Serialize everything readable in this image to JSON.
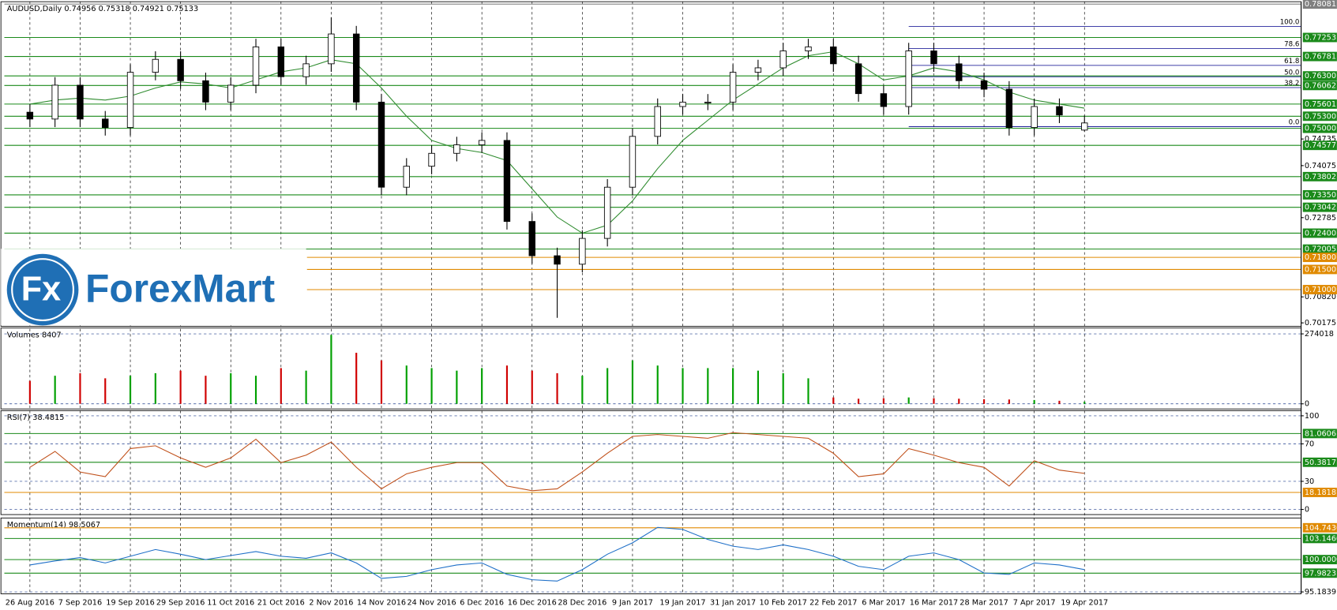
{
  "chart_data": [
    {
      "type": "candlestick",
      "title": "AUDUSD,Daily  0.74956 0.75318 0.74921 0.75133",
      "categories": [
        "26 Aug 2016",
        null,
        "7 Sep 2016",
        null,
        "19 Sep 2016",
        null,
        "29 Sep 2016",
        null,
        "11 Oct 2016",
        null,
        "21 Oct 2016",
        null,
        "2 Nov 2016",
        null,
        "14 Nov 2016",
        null,
        "24 Nov 2016",
        null,
        "6 Dec 2016",
        null,
        "16 Dec 2016",
        null,
        "28 Dec 2016",
        null,
        "9 Jan 2017",
        null,
        "19 Jan 2017",
        null,
        "31 Jan 2017",
        null,
        "10 Feb 2017",
        null,
        "22 Feb 2017",
        null,
        "6 Mar 2017",
        null,
        "16 Mar 2017",
        null,
        "28 Mar 2017",
        null,
        "7 Apr 2017",
        null,
        "19 Apr 2017"
      ],
      "open": [
        0.754,
        0.7523,
        0.7607,
        0.7523,
        0.7502,
        0.7639,
        0.7671,
        0.7618,
        0.7565,
        0.7607,
        0.7702,
        0.7628,
        0.766,
        0.7734,
        0.7565,
        0.7354,
        0.7406,
        0.7438,
        0.7459,
        0.747,
        0.7269,
        0.7184,
        0.7163,
        0.7227,
        0.7354,
        0.748,
        0.7554,
        0.7565,
        0.7565,
        0.7639,
        0.765,
        0.7692,
        0.7702,
        0.766,
        0.7586,
        0.7554,
        0.7692,
        0.766,
        0.7618,
        0.7597,
        0.7502,
        0.7554,
        0.74956
      ],
      "high": [
        0.756,
        0.7627,
        0.7627,
        0.7543,
        0.7659,
        0.7691,
        0.7691,
        0.7638,
        0.7627,
        0.7722,
        0.7722,
        0.768,
        0.7775,
        0.7754,
        0.7585,
        0.7426,
        0.7458,
        0.7479,
        0.749,
        0.749,
        0.7289,
        0.7204,
        0.7247,
        0.7374,
        0.75,
        0.7574,
        0.7585,
        0.7585,
        0.7659,
        0.767,
        0.7712,
        0.7722,
        0.7722,
        0.768,
        0.7606,
        0.7712,
        0.7712,
        0.768,
        0.7638,
        0.7617,
        0.7574,
        0.7574,
        0.75318
      ],
      "low": [
        0.7503,
        0.7503,
        0.7503,
        0.7482,
        0.7482,
        0.7619,
        0.7598,
        0.7545,
        0.7545,
        0.7587,
        0.7608,
        0.7608,
        0.764,
        0.7545,
        0.7334,
        0.7334,
        0.7386,
        0.7418,
        0.7439,
        0.7249,
        0.7164,
        0.703,
        0.7143,
        0.7207,
        0.7334,
        0.746,
        0.7534,
        0.7545,
        0.7545,
        0.7619,
        0.763,
        0.7672,
        0.764,
        0.7566,
        0.7534,
        0.7534,
        0.764,
        0.7598,
        0.7577,
        0.7482,
        0.7482,
        0.7513,
        0.74921
      ],
      "close": [
        0.7523,
        0.7607,
        0.7523,
        0.7502,
        0.7639,
        0.7671,
        0.7618,
        0.7565,
        0.7607,
        0.7702,
        0.7628,
        0.766,
        0.7734,
        0.7565,
        0.7354,
        0.7406,
        0.7438,
        0.7459,
        0.747,
        0.7269,
        0.7184,
        0.7163,
        0.7227,
        0.7354,
        0.748,
        0.7554,
        0.7565,
        0.7565,
        0.7639,
        0.765,
        0.7692,
        0.7702,
        0.766,
        0.7586,
        0.7554,
        0.7692,
        0.766,
        0.7618,
        0.7597,
        0.7502,
        0.7554,
        0.7533,
        0.75133
      ],
      "ma": {
        "color": "#2e8b2e",
        "values": [
          0.756,
          0.757,
          0.7575,
          0.757,
          0.758,
          0.76,
          0.7615,
          0.761,
          0.76,
          0.762,
          0.764,
          0.765,
          0.767,
          0.766,
          0.76,
          0.753,
          0.747,
          0.745,
          0.744,
          0.742,
          0.735,
          0.728,
          0.724,
          0.726,
          0.732,
          0.74,
          0.747,
          0.752,
          0.757,
          0.761,
          0.765,
          0.768,
          0.769,
          0.766,
          0.762,
          0.763,
          0.765,
          0.764,
          0.762,
          0.759,
          0.757,
          0.756,
          0.755
        ]
      },
      "up_color": "#ffffff",
      "down_color": "#000000",
      "ylim": [
        0.7009,
        0.7814
      ],
      "yticks": [
        0.74735,
        0.74075,
        0.72785,
        {
          "value": 0.7082,
          "label": "0.70820"
        },
        0.70175
      ],
      "levels": [
        {
          "value": 0.78081,
          "color": "#808080"
        },
        {
          "value": 0.77253,
          "color": "#1a8a1a"
        },
        {
          "value": 0.76781,
          "color": "#1a8a1a"
        },
        {
          "value": 0.763,
          "label": "0.76300",
          "color": "#1a8a1a"
        },
        {
          "value": 0.76062,
          "color": "#1a8a1a"
        },
        {
          "value": 0.75601,
          "color": "#1a8a1a"
        },
        {
          "value": 0.753,
          "label": "0.75300",
          "color": "#1a8a1a"
        },
        {
          "value": 0.75,
          "label": "0.75000",
          "color": "#1a8a1a"
        },
        {
          "value": 0.74577,
          "color": "#1a8a1a"
        },
        {
          "value": 0.73802,
          "color": "#1a8a1a"
        },
        {
          "value": 0.7335,
          "label": "0.73350",
          "color": "#1a8a1a"
        },
        {
          "value": 0.73042,
          "color": "#1a8a1a"
        },
        {
          "value": 0.724,
          "label": "0.72400",
          "color": "#1a8a1a"
        },
        {
          "value": 0.72005,
          "color": "#1a8a1a"
        },
        {
          "value": 0.718,
          "label": "0.71800",
          "color": "#e08a00"
        },
        {
          "value": 0.715,
          "label": "0.71500",
          "color": "#e08a00"
        },
        {
          "value": 0.71,
          "label": "0.71000",
          "color": "#e08a00"
        }
      ],
      "fib": [
        {
          "label": "100.0",
          "value": 0.7753
        },
        {
          "label": "78.6",
          "value": 0.7698
        },
        {
          "label": "61.8",
          "value": 0.7656
        },
        {
          "label": "50.0",
          "value": 0.7628
        },
        {
          "label": "38.2",
          "value": 0.7601
        },
        {
          "label": "0.0",
          "value": 0.7504
        }
      ],
      "logo": {
        "mark": "Fx",
        "name": "ForexMart"
      }
    },
    {
      "type": "volume",
      "title": "Volumes 8407",
      "values": [
        90000,
        110000,
        120000,
        100000,
        110000,
        120000,
        130000,
        110000,
        120000,
        110000,
        140000,
        130000,
        270000,
        200000,
        170000,
        150000,
        140000,
        130000,
        140000,
        150000,
        130000,
        120000,
        110000,
        140000,
        170000,
        150000,
        140000,
        140000,
        140000,
        130000,
        120000,
        100000,
        25000,
        20000,
        22000,
        25000,
        22000,
        20000,
        18000,
        17000,
        15000,
        12000,
        8407
      ],
      "up_color": "#00a000",
      "down_color": "#d00000",
      "ylim": [
        -20000,
        297000
      ],
      "yticks": [
        274018,
        0
      ]
    },
    {
      "type": "line",
      "title": "RSI(7) 38.4815",
      "values": [
        45,
        62,
        40,
        35,
        65,
        68,
        55,
        45,
        55,
        75,
        50,
        58,
        72,
        45,
        22,
        38,
        45,
        50,
        50,
        25,
        20,
        22,
        40,
        60,
        78,
        80,
        78,
        76,
        82,
        80,
        78,
        76,
        60,
        35,
        38,
        65,
        58,
        50,
        45,
        25,
        52,
        42,
        38.4815
      ],
      "color": "#c0501a",
      "ylim": [
        -5.5,
        105.5
      ],
      "yticks": [
        100,
        70,
        30,
        0
      ],
      "levels": [
        {
          "value": 81.0606,
          "color": "#1a8a1a"
        },
        {
          "value": 50.3817,
          "color": "#1a8a1a"
        },
        {
          "value": 18.1818,
          "color": "#e08a00"
        }
      ]
    },
    {
      "type": "line",
      "title": "Momentum(14) 98.5067",
      "values": [
        99.2,
        99.8,
        100.3,
        99.5,
        100.5,
        101.5,
        100.8,
        100,
        100.6,
        101.2,
        100.5,
        100.2,
        101,
        99.5,
        97.2,
        97.5,
        98.5,
        99.2,
        99.5,
        97.8,
        97,
        96.8,
        98.5,
        100.8,
        102.5,
        104.8,
        104.5,
        103,
        102,
        101.5,
        102.2,
        101.5,
        100.5,
        99,
        98.5,
        100.5,
        101,
        100,
        98,
        97.8,
        99.5,
        99.2,
        98.5067
      ],
      "color": "#1e6fc8",
      "ylim": [
        94.9,
        106.2
      ],
      "yticks": [
        95.1839
      ],
      "levels": [
        {
          "value": 104.743,
          "label": "104.7430",
          "color": "#e08a00"
        },
        {
          "value": 103.146,
          "label": "103.1460",
          "color": "#1a8a1a"
        },
        {
          "value": 100,
          "label": "100.0000",
          "color": "#1a8a1a"
        },
        {
          "value": 97.9823,
          "color": "#1a8a1a"
        }
      ]
    }
  ]
}
